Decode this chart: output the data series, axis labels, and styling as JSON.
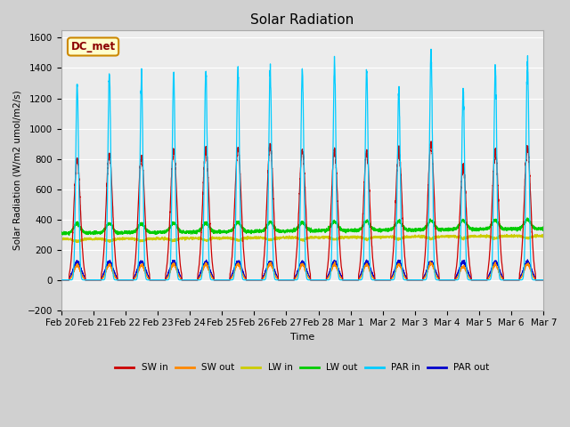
{
  "title": "Solar Radiation",
  "ylabel": "Solar Radiation (W/m2 umol/m2/s)",
  "xlabel": "Time",
  "ylim": [
    -200,
    1650
  ],
  "yticks": [
    -200,
    0,
    200,
    400,
    600,
    800,
    1000,
    1200,
    1400,
    1600
  ],
  "fig_bg_color": "#d0d0d0",
  "plot_bg_color": "#ececec",
  "series": {
    "SW_in": {
      "color": "#cc0000",
      "lw": 0.9
    },
    "SW_out": {
      "color": "#ff8800",
      "lw": 0.9
    },
    "LW_in": {
      "color": "#cccc00",
      "lw": 0.9
    },
    "LW_out": {
      "color": "#00cc00",
      "lw": 1.0
    },
    "PAR_in": {
      "color": "#00ccff",
      "lw": 0.9
    },
    "PAR_out": {
      "color": "#0000cc",
      "lw": 0.9
    }
  },
  "legend_labels": [
    "SW in",
    "SW out",
    "LW in",
    "LW out",
    "PAR in",
    "PAR out"
  ],
  "legend_colors": [
    "#cc0000",
    "#ff8800",
    "#cccc00",
    "#00cc00",
    "#00ccff",
    "#0000cc"
  ],
  "annotation_text": "DC_met",
  "num_days": 15,
  "xtick_labels": [
    "Feb 20",
    "Feb 21",
    "Feb 22",
    "Feb 23",
    "Feb 24",
    "Feb 25",
    "Feb 26",
    "Feb 27",
    "Feb 28",
    "Mar 1",
    "Mar 2",
    "Mar 3",
    "Mar 4",
    "Mar 5",
    "Mar 6",
    "Mar 7"
  ],
  "par_peaks": [
    1290,
    1355,
    1330,
    1355,
    1380,
    1420,
    1395,
    1400,
    1430,
    1390,
    1250,
    1500,
    1250,
    1400,
    1450
  ],
  "sw_peaks": [
    800,
    835,
    810,
    855,
    860,
    870,
    890,
    855,
    855,
    845,
    850,
    900,
    750,
    850,
    880
  ],
  "lw_in_base": 270,
  "lw_out_base": 310,
  "par_out_peak": 120,
  "sw_out_ratio": 0.12
}
